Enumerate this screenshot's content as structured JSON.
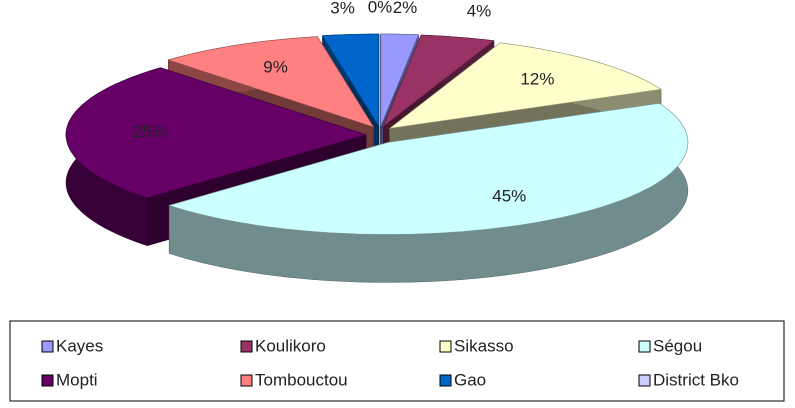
{
  "chart_data": {
    "type": "pie",
    "categories": [
      "Kayes",
      "Koulikoro",
      "Sikasso",
      "Ségou",
      "Mopti",
      "Tombouctou",
      "Gao",
      "District Bko"
    ],
    "values": [
      2,
      4,
      12,
      45,
      25,
      9,
      3,
      0
    ],
    "value_labels": [
      "2%",
      "4%",
      "12%",
      "45%",
      "25%",
      "9%",
      "3%",
      "0%"
    ],
    "colors": [
      "#9999ff",
      "#993366",
      "#ffffcc",
      "#ccffff",
      "#660066",
      "#ff8080",
      "#0066cc",
      "#ccccff"
    ],
    "legend": "bottom"
  }
}
